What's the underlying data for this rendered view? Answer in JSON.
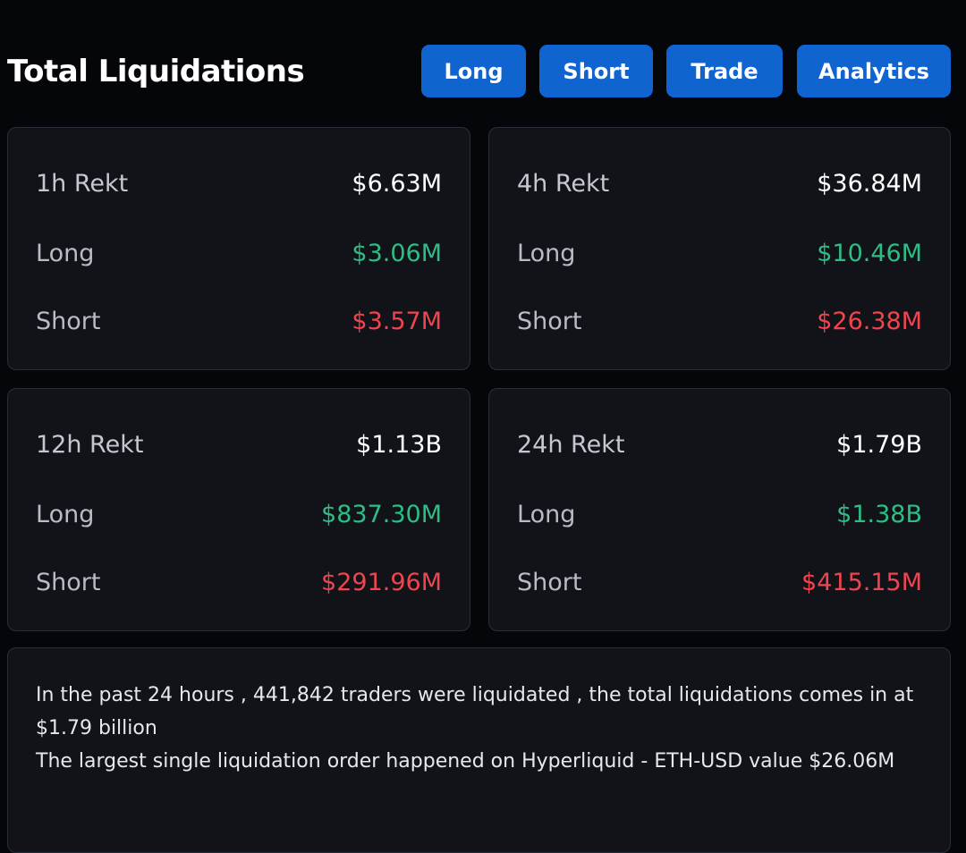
{
  "header": {
    "title": "Total Liquidations",
    "buttons": {
      "long": "Long",
      "short": "Short",
      "trade": "Trade",
      "analytics": "Analytics"
    }
  },
  "cards": {
    "h1": {
      "title": "1h Rekt",
      "total": "$6.63M",
      "long_label": "Long",
      "long_value": "$3.06M",
      "short_label": "Short",
      "short_value": "$3.57M"
    },
    "h4": {
      "title": "4h Rekt",
      "total": "$36.84M",
      "long_label": "Long",
      "long_value": "$10.46M",
      "short_label": "Short",
      "short_value": "$26.38M"
    },
    "h12": {
      "title": "12h Rekt",
      "total": "$1.13B",
      "long_label": "Long",
      "long_value": "$837.30M",
      "short_label": "Short",
      "short_value": "$291.96M"
    },
    "h24": {
      "title": "24h Rekt",
      "total": "$1.79B",
      "long_label": "Long",
      "long_value": "$1.38B",
      "short_label": "Short",
      "short_value": "$415.15M"
    }
  },
  "summary": {
    "line1": "In the past 24 hours , 441,842 traders were liquidated , the total liquidations comes in at $1.79 billion",
    "line2": "The largest single liquidation order happened on Hyperliquid - ETH-USD value $26.06M"
  },
  "colors": {
    "background": "#05060a",
    "card": "#111319",
    "accent": "#1064d0",
    "long": "#2ebd85",
    "short": "#f0444f"
  }
}
